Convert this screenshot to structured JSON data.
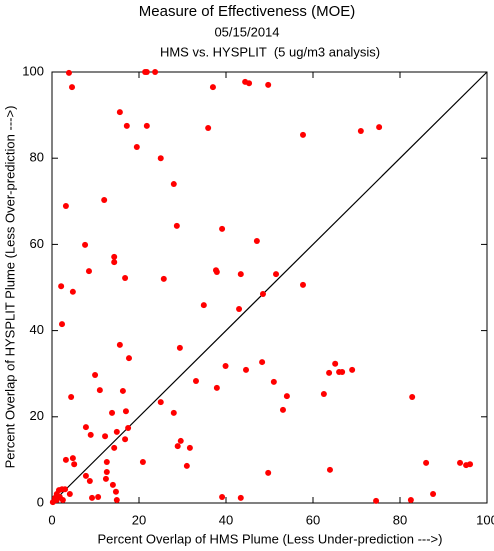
{
  "chart_data": {
    "type": "scatter",
    "title": "Measure of Effectiveness (MOE)",
    "subtitle": "05/15/2014",
    "subtitle2": "HMS vs. HYSPLIT  (5 ug/m3 analysis)",
    "x_label": "Percent Overlap of HMS Plume (Less Under-prediction --->)",
    "y_label": "Percent Overlap of HYSPLIT Plume (Less Over-prediction --->)",
    "color": "#ff0000",
    "diagonal": true,
    "xlim": [
      0,
      100
    ],
    "ylim": [
      0,
      100
    ],
    "xticks": [
      0,
      20,
      40,
      60,
      80,
      100
    ],
    "yticks": [
      0,
      20,
      40,
      60,
      80,
      100
    ],
    "x": [
      3.9,
      4.6,
      21.4,
      21.8,
      23.7,
      37,
      44.4,
      45.3,
      49.7,
      15.6,
      17.2,
      21.8,
      35.9,
      57.7,
      71,
      75.2,
      19.5,
      25,
      28,
      3.2,
      12,
      7.6,
      14.3,
      14.3,
      28.7,
      39.1,
      47.1,
      2.1,
      4.8,
      8.5,
      16.8,
      25.7,
      37.7,
      37.9,
      43.4,
      51.5,
      57.7,
      48.5,
      2.3,
      34.9,
      43,
      15.6,
      17.7,
      29.4,
      9.9,
      11,
      16.3,
      33.1,
      37.9,
      39.9,
      44.6,
      48.3,
      51,
      54,
      53.1,
      63.7,
      65.1,
      66,
      66.7,
      69,
      62.5,
      4.4,
      13.8,
      17,
      25,
      28,
      82.8,
      7.8,
      8.9,
      12.2,
      14.9,
      17.5,
      16.8,
      14.3,
      29.6,
      28.9,
      31.7,
      20.9,
      31,
      12.6,
      12.6,
      4.8,
      5.1,
      3.2,
      7.8,
      8.7,
      12.4,
      14,
      14.7,
      14.9,
      9.2,
      10.6,
      39.1,
      43.4,
      49.7,
      63.9,
      74.5,
      82.5,
      87.6,
      86,
      93.8,
      95.2,
      96.1,
      0.2,
      0.7,
      1.1,
      1.6,
      2.3,
      3,
      1.8,
      2.5,
      4.1,
      1.1
    ],
    "y": [
      99.8,
      96.5,
      100,
      100,
      100,
      96.5,
      97.7,
      97.4,
      97,
      90.7,
      87.5,
      87.5,
      87,
      85.4,
      86.3,
      87.2,
      82.6,
      80,
      74,
      68.9,
      70.3,
      59.9,
      57.1,
      55.9,
      64.3,
      63.6,
      60.8,
      50.3,
      49,
      53.8,
      52.2,
      52,
      54,
      53.6,
      53.1,
      53.1,
      50.6,
      48.5,
      41.5,
      45.9,
      45,
      36.7,
      33.6,
      36,
      29.7,
      26.2,
      26,
      28.3,
      26.7,
      31.8,
      30.9,
      32.7,
      28.1,
      24.8,
      21.6,
      30.2,
      32.3,
      30.4,
      30.4,
      30.9,
      25.3,
      24.6,
      20.9,
      21.3,
      23.4,
      20.9,
      24.6,
      17.6,
      15.8,
      15.5,
      16.5,
      17.4,
      14.8,
      12.8,
      14.4,
      13.2,
      12.8,
      9.5,
      8.6,
      9.5,
      7.2,
      10.4,
      9,
      10,
      6.3,
      5.1,
      5.6,
      4.2,
      2.6,
      0.7,
      1.2,
      1.4,
      1.4,
      1.2,
      7,
      7.7,
      0.5,
      0.7,
      2.1,
      9.3,
      9.3,
      8.8,
      9,
      0.2,
      1.2,
      2.1,
      3,
      3.2,
      3.2,
      1.4,
      0.7,
      2.1,
      0.7
    ]
  }
}
